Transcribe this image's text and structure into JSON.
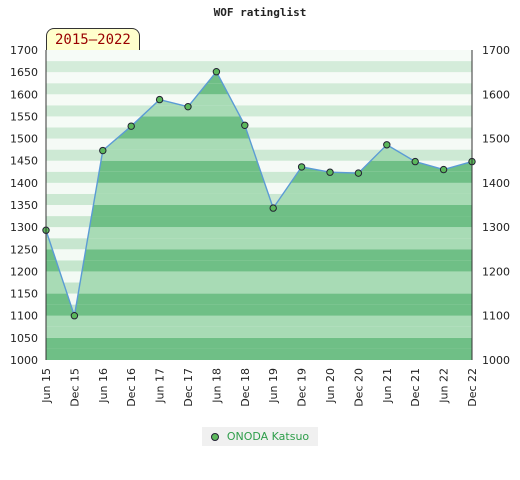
{
  "title": "WOF ratinglist",
  "range_label": "2015–2022",
  "chart_data": {
    "type": "area",
    "title": "WOF ratinglist",
    "x": [
      "Jun 15",
      "Dec 15",
      "Jun 16",
      "Dec 16",
      "Jun 17",
      "Dec 17",
      "Jun 18",
      "Dec 18",
      "Jun 19",
      "Dec 19",
      "Jun 20",
      "Dec 20",
      "Jun 21",
      "Dec 21",
      "Jun 22",
      "Dec 22"
    ],
    "series": [
      {
        "name": "ONODA Katsuo",
        "values": [
          1293,
          1100,
          1473,
          1528,
          1588,
          1572,
          1651,
          1530,
          1343,
          1436,
          1424,
          1422,
          1486,
          1448,
          1430,
          1448
        ]
      }
    ],
    "ylim_left": [
      1000,
      1700
    ],
    "ylim_right": [
      1000,
      1700
    ],
    "y_ticks_left": [
      1000,
      1050,
      1100,
      1150,
      1200,
      1250,
      1300,
      1350,
      1400,
      1450,
      1500,
      1550,
      1600,
      1650,
      1700
    ],
    "y_ticks_right": [
      1000,
      1100,
      1200,
      1300,
      1400,
      1500,
      1600,
      1700
    ],
    "grid": "horizontal bands",
    "legend_position": "bottom-center",
    "colors": {
      "line": "#5b9bd5",
      "area_dark": "#6fbf86",
      "area_light": "#a8dbb5",
      "band_dark": "#bfe3c8",
      "band_light": "#f2f9f3",
      "marker": "#5cb85c",
      "legend_text": "#2e9e4a"
    }
  },
  "legend": {
    "label": "ONODA Katsuo"
  }
}
